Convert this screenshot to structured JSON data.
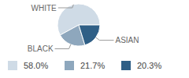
{
  "chart_data": {
    "type": "pie",
    "categories": [
      "WHITE",
      "BLACK",
      "ASIAN"
    ],
    "values": [
      58.0,
      21.7,
      20.3
    ],
    "value_labels": [
      "58.0%",
      "21.7%",
      "20.3%"
    ],
    "colors": [
      "#cfdbe6",
      "#8ea7bd",
      "#2f5f86"
    ]
  }
}
